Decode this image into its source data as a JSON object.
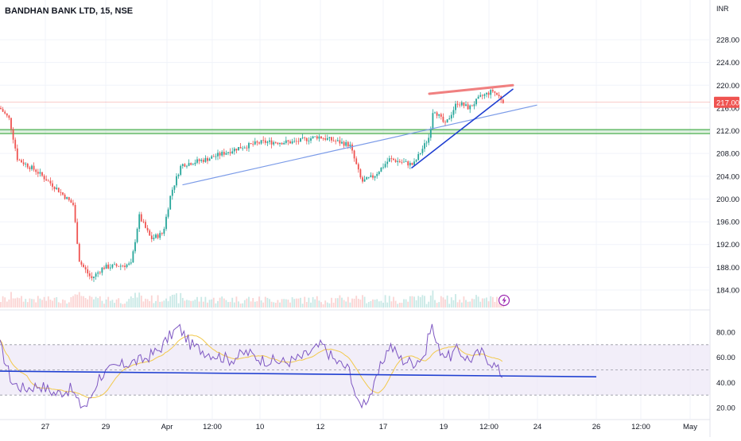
{
  "symbol_header": "BANDHAN BANK LTD, 15, NSE",
  "currency": "INR",
  "last_price_label": "217.00",
  "colors": {
    "up": "#26a69a",
    "down": "#ef5350",
    "last_price": "#ef5350",
    "support_zone": "#4caf50",
    "trendline_light": "#7b9be8",
    "trendline_dark": "#1f3fd1",
    "resistance": "#f08080",
    "rsi_line": "#7e57c2",
    "rsi_ma": "#f2c94c",
    "rsi_band": "#ede7f6",
    "flash_icon": "#9c27b0"
  },
  "flash_icon": "lightning-icon",
  "chart_data": [
    {
      "type": "candlestick",
      "panel": "price",
      "title": "BANDHAN BANK LTD, 15, NSE",
      "ylim": [
        181,
        233
      ],
      "yticks": [
        "228.00",
        "224.00",
        "220.00",
        "216.00",
        "212.00",
        "208.00",
        "204.00",
        "200.00",
        "196.00",
        "192.00",
        "188.00",
        "184.00"
      ],
      "ytick_values": [
        228,
        224,
        220,
        216,
        212,
        208,
        204,
        200,
        196,
        192,
        188,
        184
      ],
      "last_price": 217.0,
      "support_zone": [
        211.5,
        212.2
      ],
      "approx_path": [
        {
          "x": 0,
          "p": 216
        },
        {
          "x": 12,
          "p": 214
        },
        {
          "x": 22,
          "p": 207
        },
        {
          "x": 45,
          "p": 205
        },
        {
          "x": 70,
          "p": 202
        },
        {
          "x": 92,
          "p": 199
        },
        {
          "x": 100,
          "p": 189
        },
        {
          "x": 115,
          "p": 186
        },
        {
          "x": 130,
          "p": 188
        },
        {
          "x": 165,
          "p": 188.5
        },
        {
          "x": 175,
          "p": 197
        },
        {
          "x": 190,
          "p": 193
        },
        {
          "x": 205,
          "p": 194
        },
        {
          "x": 215,
          "p": 201
        },
        {
          "x": 228,
          "p": 206
        },
        {
          "x": 260,
          "p": 207
        },
        {
          "x": 300,
          "p": 209
        },
        {
          "x": 330,
          "p": 210
        },
        {
          "x": 370,
          "p": 210
        },
        {
          "x": 400,
          "p": 211
        },
        {
          "x": 440,
          "p": 209.5
        },
        {
          "x": 455,
          "p": 203
        },
        {
          "x": 470,
          "p": 204
        },
        {
          "x": 490,
          "p": 207
        },
        {
          "x": 520,
          "p": 206
        },
        {
          "x": 540,
          "p": 211
        },
        {
          "x": 545,
          "p": 216
        },
        {
          "x": 560,
          "p": 213
        },
        {
          "x": 575,
          "p": 217
        },
        {
          "x": 590,
          "p": 216
        },
        {
          "x": 605,
          "p": 218
        },
        {
          "x": 620,
          "p": 219
        },
        {
          "x": 635,
          "p": 217
        }
      ],
      "drawings": [
        {
          "name": "trendline-light-1",
          "p1": {
            "x": 230,
            "p": 202.5
          },
          "p2": {
            "x": 675,
            "p": 216.5
          }
        },
        {
          "name": "trendline-dark-rising",
          "p1": {
            "x": 518,
            "p": 205.5
          },
          "p2": {
            "x": 645,
            "p": 219.3
          }
        },
        {
          "name": "resistance-line",
          "p1": {
            "x": 540,
            "p": 218.5
          },
          "p2": {
            "x": 645,
            "p": 220
          }
        }
      ]
    },
    {
      "type": "line",
      "panel": "rsi",
      "ylim": [
        10,
        90
      ],
      "yticks": [
        "80.00",
        "60.00",
        "40.00",
        "20.00"
      ],
      "ytick_values": [
        80,
        60,
        40,
        20
      ],
      "bands": [
        30,
        50,
        70
      ],
      "approx_rsi": [
        {
          "x": 0,
          "v": 70
        },
        {
          "x": 15,
          "v": 40
        },
        {
          "x": 30,
          "v": 35
        },
        {
          "x": 50,
          "v": 38
        },
        {
          "x": 70,
          "v": 31
        },
        {
          "x": 90,
          "v": 35
        },
        {
          "x": 100,
          "v": 22
        },
        {
          "x": 110,
          "v": 22
        },
        {
          "x": 125,
          "v": 45
        },
        {
          "x": 145,
          "v": 52
        },
        {
          "x": 165,
          "v": 56
        },
        {
          "x": 180,
          "v": 58
        },
        {
          "x": 200,
          "v": 66
        },
        {
          "x": 215,
          "v": 78
        },
        {
          "x": 225,
          "v": 84
        },
        {
          "x": 240,
          "v": 70
        },
        {
          "x": 260,
          "v": 64
        },
        {
          "x": 290,
          "v": 58
        },
        {
          "x": 310,
          "v": 64
        },
        {
          "x": 330,
          "v": 58
        },
        {
          "x": 360,
          "v": 56
        },
        {
          "x": 380,
          "v": 60
        },
        {
          "x": 405,
          "v": 70
        },
        {
          "x": 420,
          "v": 58
        },
        {
          "x": 440,
          "v": 50
        },
        {
          "x": 450,
          "v": 22
        },
        {
          "x": 460,
          "v": 26
        },
        {
          "x": 470,
          "v": 35
        },
        {
          "x": 480,
          "v": 55
        },
        {
          "x": 490,
          "v": 70
        },
        {
          "x": 505,
          "v": 58
        },
        {
          "x": 520,
          "v": 56
        },
        {
          "x": 535,
          "v": 62
        },
        {
          "x": 542,
          "v": 88
        },
        {
          "x": 550,
          "v": 68
        },
        {
          "x": 565,
          "v": 60
        },
        {
          "x": 575,
          "v": 66
        },
        {
          "x": 590,
          "v": 58
        },
        {
          "x": 605,
          "v": 64
        },
        {
          "x": 620,
          "v": 55
        },
        {
          "x": 633,
          "v": 45
        }
      ],
      "trendline": {
        "p1": {
          "x": 0,
          "v": 49
        },
        "p2": {
          "x": 750,
          "v": 44.5
        }
      }
    }
  ],
  "x_axis": {
    "labels": [
      "27",
      "29",
      "Apr",
      "12:00",
      "10",
      "12",
      "17",
      "19",
      "12:00",
      "24",
      "26",
      "12:00",
      "May"
    ],
    "positions": [
      57,
      133,
      210,
      267,
      327,
      403,
      482,
      558,
      615,
      676,
      750,
      806,
      868
    ]
  }
}
